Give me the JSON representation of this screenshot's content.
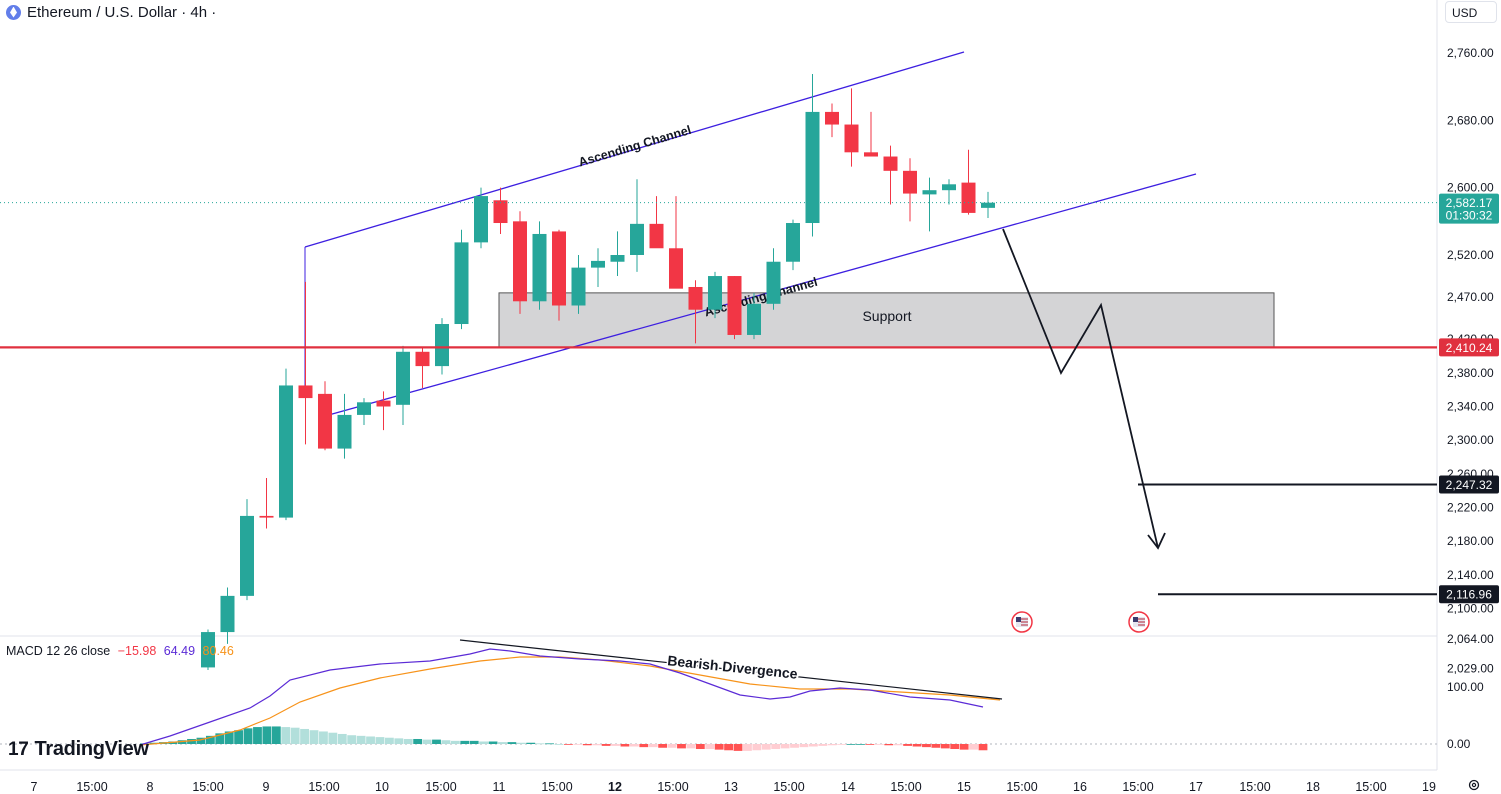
{
  "header": {
    "symbol": "Ethereum / U.S. Dollar · 4h ·"
  },
  "currency_selector": "USD",
  "macd_legend": {
    "name": "MACD 12 26 close",
    "histogram": "−15.98",
    "macd": "64.49",
    "signal": "80.46"
  },
  "branding": {
    "logo": "TradingView",
    "logo_mark": "17"
  },
  "colors": {
    "bull": "#26a69a",
    "bear": "#f23645",
    "channel": "#3d1fe0",
    "support_zone": "#d4d4d6",
    "price_line": "#e0303f",
    "macd_line": "#5b2bd6",
    "signal_line": "#f7931a"
  },
  "chart_data": {
    "type": "candlestick",
    "x_tick_labels": [
      "7",
      "15:00",
      "8",
      "15:00",
      "9",
      "15:00",
      "10",
      "15:00",
      "11",
      "15:00",
      "12",
      "15:00",
      "13",
      "15:00",
      "14",
      "15:00",
      "15",
      "15:00",
      "16",
      "15:00",
      "17",
      "15:00",
      "18",
      "15:00",
      "19"
    ],
    "y_tick_labels": [
      "2,760.00",
      "2,680.00",
      "2,600.00",
      "2,520.00",
      "2,470.00",
      "2,420.00",
      "2,380.00",
      "2,340.00",
      "2,300.00",
      "2,260.00",
      "2,220.00",
      "2,180.00",
      "2,140.00",
      "2,100.00",
      "2,064.00",
      "2,029.00"
    ],
    "y_ticks": [
      2760,
      2680,
      2600,
      2520,
      2470,
      2420,
      2380,
      2340,
      2300,
      2260,
      2220,
      2180,
      2140,
      2100,
      2064,
      2029
    ],
    "candles": [
      {
        "o": 2030,
        "h": 2075,
        "l": 2027,
        "c": 2072
      },
      {
        "o": 2072,
        "h": 2125,
        "l": 2058,
        "c": 2115
      },
      {
        "o": 2115,
        "h": 2230,
        "l": 2110,
        "c": 2210
      },
      {
        "o": 2210,
        "h": 2255,
        "l": 2195,
        "c": 2208
      },
      {
        "o": 2208,
        "h": 2385,
        "l": 2205,
        "c": 2365
      },
      {
        "o": 2365,
        "h": 2488,
        "l": 2295,
        "c": 2350
      },
      {
        "o": 2355,
        "h": 2370,
        "l": 2288,
        "c": 2290
      },
      {
        "o": 2290,
        "h": 2355,
        "l": 2278,
        "c": 2330
      },
      {
        "o": 2330,
        "h": 2350,
        "l": 2318,
        "c": 2345
      },
      {
        "o": 2347,
        "h": 2358,
        "l": 2312,
        "c": 2340
      },
      {
        "o": 2342,
        "h": 2412,
        "l": 2318,
        "c": 2405
      },
      {
        "o": 2405,
        "h": 2410,
        "l": 2362,
        "c": 2388
      },
      {
        "o": 2388,
        "h": 2445,
        "l": 2378,
        "c": 2438
      },
      {
        "o": 2438,
        "h": 2550,
        "l": 2432,
        "c": 2535
      },
      {
        "o": 2535,
        "h": 2600,
        "l": 2528,
        "c": 2590
      },
      {
        "o": 2585,
        "h": 2600,
        "l": 2545,
        "c": 2558
      },
      {
        "o": 2560,
        "h": 2572,
        "l": 2450,
        "c": 2465
      },
      {
        "o": 2465,
        "h": 2560,
        "l": 2455,
        "c": 2545
      },
      {
        "o": 2548,
        "h": 2550,
        "l": 2442,
        "c": 2460
      },
      {
        "o": 2460,
        "h": 2520,
        "l": 2450,
        "c": 2505
      },
      {
        "o": 2505,
        "h": 2528,
        "l": 2482,
        "c": 2513
      },
      {
        "o": 2512,
        "h": 2548,
        "l": 2495,
        "c": 2520
      },
      {
        "o": 2520,
        "h": 2610,
        "l": 2500,
        "c": 2557
      },
      {
        "o": 2557,
        "h": 2590,
        "l": 2530,
        "c": 2528
      },
      {
        "o": 2528,
        "h": 2590,
        "l": 2485,
        "c": 2480
      },
      {
        "o": 2482,
        "h": 2490,
        "l": 2415,
        "c": 2455
      },
      {
        "o": 2455,
        "h": 2500,
        "l": 2445,
        "c": 2495
      },
      {
        "o": 2495,
        "h": 2495,
        "l": 2420,
        "c": 2425
      },
      {
        "o": 2425,
        "h": 2475,
        "l": 2420,
        "c": 2462
      },
      {
        "o": 2462,
        "h": 2528,
        "l": 2455,
        "c": 2512
      },
      {
        "o": 2512,
        "h": 2562,
        "l": 2502,
        "c": 2558
      },
      {
        "o": 2558,
        "h": 2735,
        "l": 2542,
        "c": 2690
      },
      {
        "o": 2690,
        "h": 2700,
        "l": 2660,
        "c": 2675
      },
      {
        "o": 2675,
        "h": 2718,
        "l": 2625,
        "c": 2642
      },
      {
        "o": 2642,
        "h": 2690,
        "l": 2637,
        "c": 2637
      },
      {
        "o": 2637,
        "h": 2650,
        "l": 2580,
        "c": 2620
      },
      {
        "o": 2620,
        "h": 2635,
        "l": 2560,
        "c": 2593
      },
      {
        "o": 2592,
        "h": 2612,
        "l": 2548,
        "c": 2597
      },
      {
        "o": 2597,
        "h": 2610,
        "l": 2580,
        "c": 2604
      },
      {
        "o": 2606,
        "h": 2645,
        "l": 2568,
        "c": 2570
      },
      {
        "o": 2576,
        "h": 2595,
        "l": 2564,
        "c": 2582.17
      }
    ],
    "current_price": {
      "value": 2582.17,
      "label": "2,582.17",
      "countdown": "01:30:32"
    },
    "horizontal_level": {
      "value": 2410.24,
      "label": "2,410.24"
    },
    "target_1": {
      "value": 2247.32,
      "label": "2,247.32"
    },
    "target_2": {
      "value": 2116.96,
      "label": "2,116.96"
    },
    "support_zone": {
      "label": "Support",
      "from": 2410,
      "to": 2475
    },
    "channel_label": "Ascending Channel",
    "channel_label_2": "Ascending Channel",
    "projection": [
      [
        2512,
        2510
      ],
      [
        2544,
        2322
      ],
      [
        2565,
        2410
      ],
      [
        2596,
        2116
      ]
    ],
    "macd": {
      "legend_label": "Bearish Divergence",
      "y_tick_labels": [
        "100.00",
        "0.00"
      ],
      "y_ticks": [
        100,
        0
      ],
      "histogram": [
        1,
        2,
        3,
        4,
        6,
        8,
        10,
        13,
        17,
        20,
        22,
        25,
        27,
        28,
        28,
        27,
        26,
        24,
        22,
        20,
        18,
        16,
        14,
        13,
        12,
        11,
        10,
        9,
        8,
        8,
        7,
        7,
        6,
        5,
        5,
        5,
        4,
        4,
        3,
        3,
        2,
        2,
        1,
        1,
        0,
        -1,
        -1,
        -2,
        -2,
        -3,
        -3,
        -4,
        -4,
        -5,
        -5,
        -6,
        -6,
        -7,
        -7,
        -8,
        -8,
        -9,
        -10,
        -11,
        -11,
        -10,
        -9,
        -8,
        -7,
        -6,
        -5,
        -4,
        -3,
        -2,
        -1,
        0,
        0,
        -1,
        -1,
        -2,
        -2,
        -3,
        -4,
        -5,
        -6,
        -7,
        -8,
        -9,
        -9,
        -10
      ],
      "histogram_colors": [
        "#26a69a",
        "#b2dfdb",
        "#ff5252",
        "#ffcdd2"
      ],
      "macd_line_note": "blue",
      "signal_line_note": "orange"
    }
  }
}
